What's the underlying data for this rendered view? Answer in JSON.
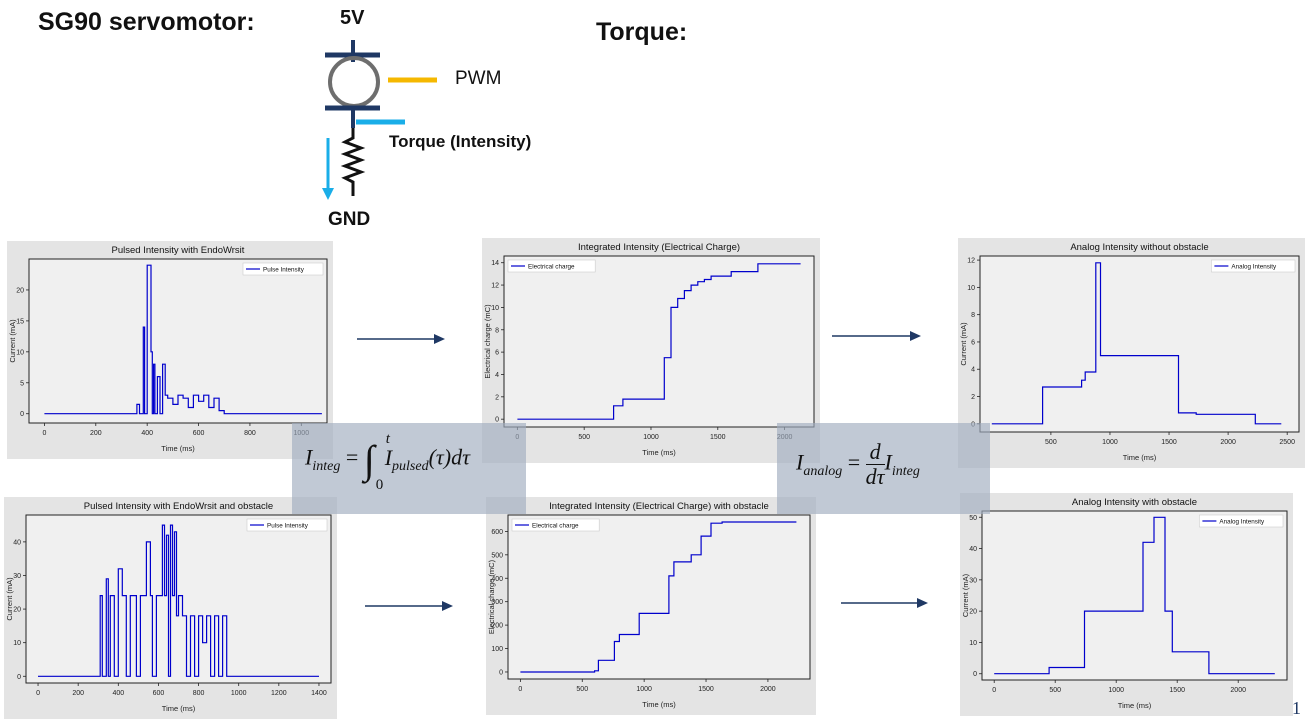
{
  "header": {
    "title": "SG90 servomotor:",
    "torque_heading": "Torque:"
  },
  "circuit": {
    "supply_label": "5V",
    "pwm_label": "PWM",
    "torque_label": "Torque (Intensity)",
    "ground_label": "GND",
    "colors": {
      "pwm": "#f5b800",
      "torque": "#1aaee8",
      "body": "#1f3864",
      "motor": "#6e6e6e"
    }
  },
  "formulas": {
    "integ_lhs": "I",
    "integ_lhs_sub": "integ",
    "integ_eq": "=",
    "integ_upper": "t",
    "integ_lower": "0",
    "integ_body": "I",
    "integ_body_sub": "pulsed",
    "integ_arg": "(τ)dτ",
    "analog_lhs": "I",
    "analog_lhs_sub": "analog",
    "analog_eq": "=",
    "analog_num": "d",
    "analog_den": "dτ",
    "analog_rhs": "I",
    "analog_rhs_sub": "integ"
  },
  "slide_number": "1",
  "colors": {
    "line": "#0000cc",
    "arrow": "#1f3864",
    "panel": "#e4e4e4",
    "plot_bg": "#f0f0f0"
  },
  "chart_data": [
    {
      "type": "line",
      "title": "Pulsed Intensity with EndoWrsit",
      "xlabel": "Time (ms)",
      "ylabel": "Current (mA)",
      "legend": "Pulse Intensity",
      "xlim": [
        -60,
        1100
      ],
      "ylim": [
        -1.5,
        25
      ],
      "xticks": [
        0,
        200,
        400,
        600,
        800,
        1000
      ],
      "yticks": [
        0,
        5,
        10,
        15,
        20
      ],
      "x": [
        0,
        360,
        360,
        370,
        370,
        385,
        385,
        390,
        390,
        400,
        400,
        415,
        415,
        420,
        420,
        425,
        425,
        430,
        430,
        440,
        440,
        450,
        450,
        460,
        460,
        470,
        470,
        480,
        480,
        500,
        500,
        520,
        520,
        540,
        540,
        560,
        560,
        580,
        580,
        600,
        600,
        620,
        620,
        640,
        640,
        660,
        660,
        680,
        680,
        700,
        700,
        1080
      ],
      "y": [
        0,
        0,
        1.5,
        1.5,
        0,
        0,
        14,
        14,
        0,
        0,
        24,
        24,
        10,
        10,
        0,
        0,
        8,
        8,
        0,
        0,
        6,
        6,
        0,
        0,
        8,
        8,
        3,
        3,
        2.5,
        2.5,
        1.5,
        1.5,
        3,
        3,
        2.5,
        2.5,
        1,
        1,
        3,
        3,
        2,
        2,
        3,
        3,
        1,
        1,
        2.5,
        2.5,
        0.5,
        0.5,
        0,
        0
      ]
    },
    {
      "type": "line",
      "title": "Integrated Intensity (Electrical Charge)",
      "xlabel": "Time (ms)",
      "ylabel": "Electrical charge (mC)",
      "legend": "Electrical charge",
      "xlim": [
        -100,
        2220
      ],
      "ylim": [
        -0.7,
        14.6
      ],
      "xticks": [
        0,
        500,
        1000,
        1500,
        2000
      ],
      "yticks": [
        0,
        2,
        4,
        6,
        8,
        10,
        12,
        14
      ],
      "x": [
        0,
        720,
        720,
        790,
        790,
        1100,
        1100,
        1150,
        1150,
        1200,
        1200,
        1250,
        1250,
        1300,
        1300,
        1350,
        1350,
        1400,
        1400,
        1450,
        1450,
        1600,
        1600,
        1800,
        1800,
        2120
      ],
      "y": [
        0,
        0,
        1.2,
        1.2,
        1.8,
        1.8,
        5.5,
        5.5,
        10,
        10,
        10.8,
        10.8,
        11.5,
        11.5,
        12,
        12,
        12.3,
        12.3,
        12.5,
        12.5,
        12.8,
        12.8,
        13.2,
        13.2,
        13.9,
        13.9
      ]
    },
    {
      "type": "line",
      "title": "Analog Intensity without obstacle",
      "xlabel": "Time (ms)",
      "ylabel": "Current (mA)",
      "legend": "Analog Intensity",
      "xlim": [
        -100,
        2600
      ],
      "ylim": [
        -0.6,
        12.3
      ],
      "xticks": [
        500,
        1000,
        1500,
        2000,
        2500
      ],
      "yticks": [
        0,
        2,
        4,
        6,
        8,
        10,
        12
      ],
      "x": [
        0,
        430,
        430,
        760,
        760,
        790,
        790,
        880,
        880,
        920,
        920,
        960,
        960,
        1580,
        1580,
        1730,
        1730,
        2230,
        2230,
        2450
      ],
      "y": [
        0,
        0,
        2.7,
        2.7,
        3.2,
        3.2,
        3.8,
        3.8,
        11.8,
        11.8,
        5,
        5,
        5,
        5,
        0.8,
        0.8,
        0.7,
        0.7,
        0,
        0
      ]
    },
    {
      "type": "line",
      "title": "Pulsed Intensity with EndoWrsit and obstacle",
      "xlabel": "Time (ms)",
      "ylabel": "Current (mA)",
      "legend": "Pulse Intensity",
      "xlim": [
        -60,
        1460
      ],
      "ylim": [
        -2,
        48
      ],
      "xticks": [
        0,
        200,
        400,
        600,
        800,
        1000,
        1200,
        1400
      ],
      "yticks": [
        0,
        10,
        20,
        30,
        40
      ],
      "x": [
        0,
        310,
        310,
        320,
        320,
        340,
        340,
        350,
        350,
        360,
        360,
        380,
        380,
        400,
        400,
        420,
        420,
        440,
        440,
        460,
        460,
        490,
        490,
        510,
        510,
        540,
        540,
        560,
        560,
        570,
        570,
        590,
        590,
        620,
        620,
        630,
        630,
        640,
        640,
        650,
        650,
        660,
        660,
        670,
        670,
        680,
        680,
        690,
        690,
        700,
        700,
        720,
        720,
        740,
        740,
        760,
        760,
        780,
        780,
        800,
        800,
        820,
        820,
        840,
        840,
        860,
        860,
        880,
        880,
        900,
        900,
        920,
        920,
        940,
        940,
        960,
        960,
        1400
      ],
      "y": [
        0,
        0,
        24,
        24,
        0,
        0,
        29,
        29,
        0,
        0,
        24,
        24,
        0,
        0,
        32,
        32,
        24,
        24,
        0,
        0,
        24,
        24,
        0,
        0,
        24,
        24,
        40,
        40,
        24,
        24,
        0,
        0,
        24,
        24,
        45,
        45,
        24,
        24,
        42,
        42,
        0,
        0,
        45,
        45,
        24,
        24,
        43,
        43,
        18,
        18,
        24,
        24,
        18,
        18,
        0,
        0,
        18,
        18,
        0,
        0,
        18,
        18,
        10,
        10,
        18,
        18,
        0,
        0,
        18,
        18,
        0,
        0,
        18,
        18,
        0,
        0,
        0,
        0
      ]
    },
    {
      "type": "line",
      "title": "Integrated Intensity (Electrical Charge) with obstacle",
      "xlabel": "Time (ms)",
      "ylabel": "Electrical charge (mC)",
      "legend": "Electrical charge",
      "xlim": [
        -100,
        2340
      ],
      "ylim": [
        -30,
        670
      ],
      "xticks": [
        0,
        500,
        1000,
        1500,
        2000
      ],
      "yticks": [
        0,
        100,
        200,
        300,
        400,
        500,
        600
      ],
      "x": [
        0,
        600,
        600,
        630,
        630,
        760,
        760,
        800,
        800,
        960,
        960,
        1200,
        1200,
        1240,
        1240,
        1380,
        1380,
        1460,
        1460,
        1540,
        1540,
        1630,
        1630,
        2230
      ],
      "y": [
        0,
        0,
        5,
        5,
        50,
        50,
        130,
        130,
        160,
        160,
        250,
        250,
        410,
        410,
        470,
        470,
        500,
        500,
        580,
        580,
        635,
        635,
        640,
        640
      ]
    },
    {
      "type": "line",
      "title": "Analog Intensity with obstacle",
      "xlabel": "Time (ms)",
      "ylabel": "Current (mA)",
      "legend": "Analog Intensity",
      "xlim": [
        -100,
        2400
      ],
      "ylim": [
        -2,
        52
      ],
      "xticks": [
        0,
        500,
        1000,
        1500,
        2000
      ],
      "yticks": [
        0,
        10,
        20,
        30,
        40,
        50
      ],
      "x": [
        0,
        450,
        450,
        740,
        740,
        1220,
        1220,
        1310,
        1310,
        1400,
        1400,
        1460,
        1460,
        1760,
        1760,
        2300
      ],
      "y": [
        0,
        0,
        2,
        2,
        20,
        20,
        42,
        42,
        50,
        50,
        20,
        20,
        7,
        7,
        0,
        0
      ]
    }
  ]
}
